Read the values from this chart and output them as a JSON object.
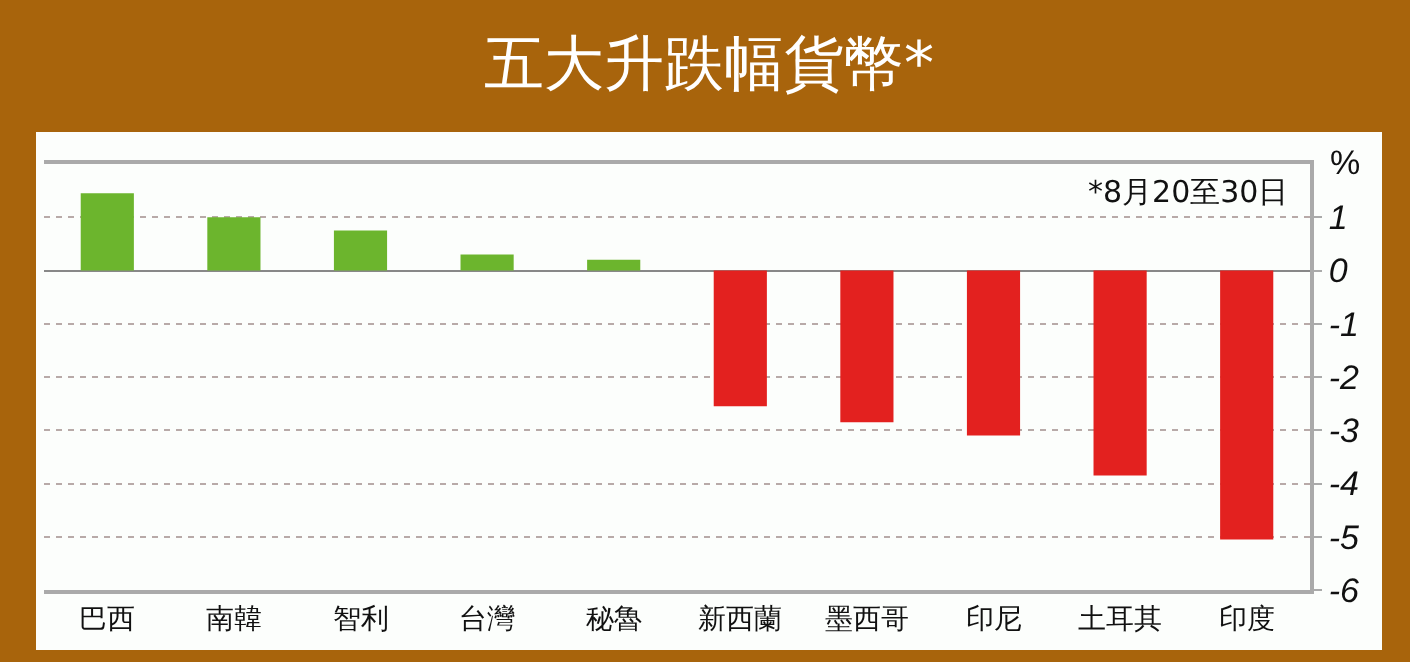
{
  "chart_data": {
    "type": "bar",
    "title": "五大升跌幅貨幣*",
    "ylabel": "%",
    "annotations": [
      "*8月20至30日"
    ],
    "categories": [
      "巴西",
      "南韓",
      "智利",
      "台灣",
      "秘魯",
      "新西蘭",
      "墨西哥",
      "印尼",
      "土耳其",
      "印度"
    ],
    "values": [
      1.45,
      1.0,
      0.75,
      0.3,
      0.2,
      -2.55,
      -2.85,
      -3.1,
      -3.85,
      -5.05
    ],
    "colors": [
      "#6cb52d",
      "#6cb52d",
      "#6cb52d",
      "#6cb52d",
      "#6cb52d",
      "#e3211f",
      "#e3211f",
      "#e3211f",
      "#e3211f",
      "#e3211f"
    ],
    "ylim": [
      -6,
      2
    ],
    "yticks": [
      -6,
      -5,
      -4,
      -3,
      -2,
      -1,
      0,
      1
    ],
    "grid": "y"
  }
}
